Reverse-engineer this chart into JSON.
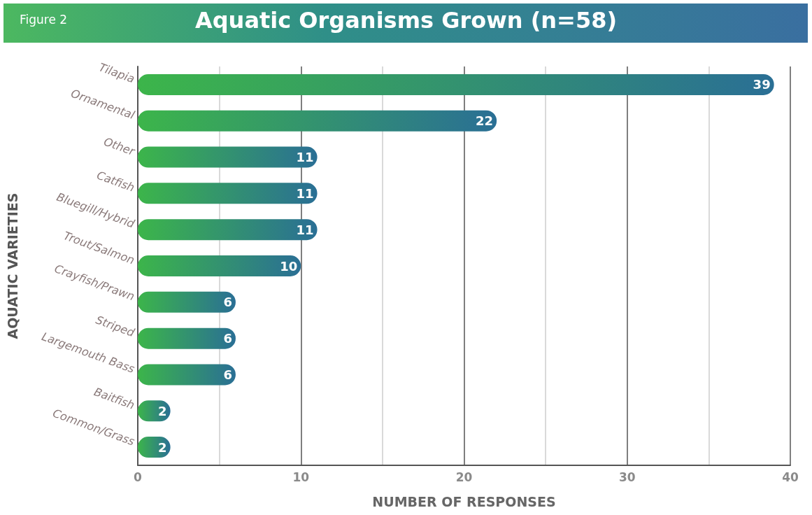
{
  "chart_data": {
    "type": "bar",
    "orientation": "horizontal",
    "title": "Aquatic Organisms Grown (n=58)",
    "annotations": [
      "Figure 2"
    ],
    "xlabel": "NUMBER OF RESPONSES",
    "ylabel": "AQUATIC VARIETIES",
    "categories": [
      "Tilapia",
      "Ornamental",
      "Other",
      "Catfish",
      "Bluegill/Hybrid",
      "Trout/Salmon",
      "Crayfish/Prawn",
      "Striped",
      "Largemouth Bass",
      "Baitfish",
      "Common/Grass"
    ],
    "values": [
      39,
      22,
      11,
      11,
      11,
      10,
      6,
      6,
      6,
      2,
      2
    ],
    "color": "#2a6f95",
    "data_labels": true,
    "grid": "x",
    "xlim": [
      0,
      40
    ],
    "xticks": [
      0,
      {
        "value": 5,
        "label": null
      },
      10,
      {
        "value": 15,
        "label": null
      },
      20,
      {
        "value": 25,
        "label": null
      },
      30,
      {
        "value": 35,
        "label": null
      },
      40
    ]
  }
}
